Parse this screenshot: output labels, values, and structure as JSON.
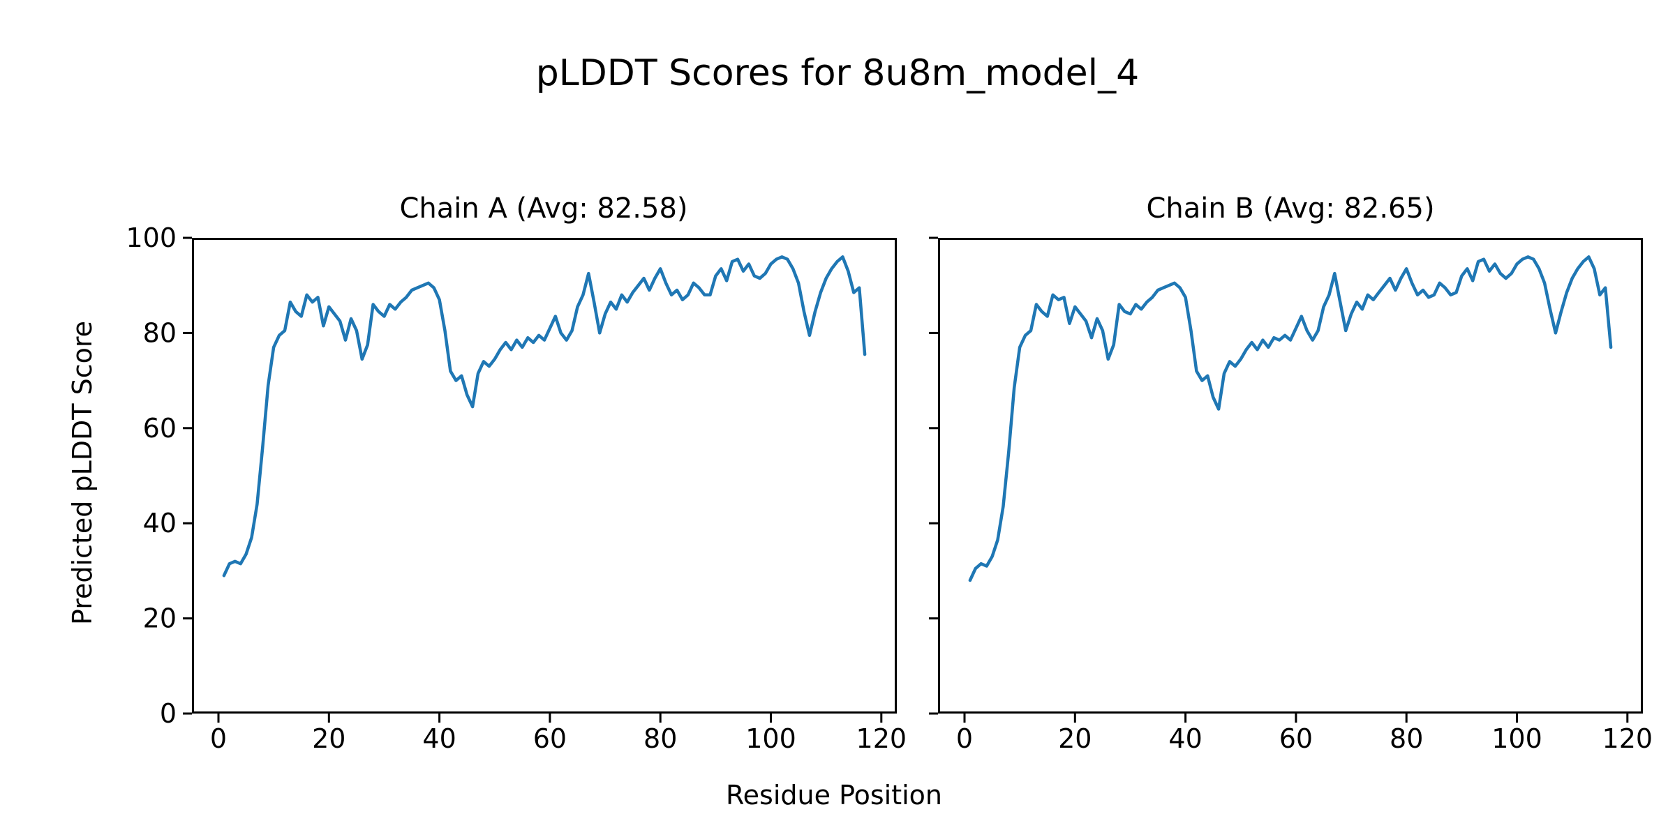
{
  "figure": {
    "title": "pLDDT Scores for 8u8m_model_4",
    "xlabel": "Residue Position",
    "ylabel": "Predicted pLDDT Score"
  },
  "chart_data": [
    {
      "type": "line",
      "title": "Chain A (Avg: 82.58)",
      "chain": "A",
      "avg": 82.58,
      "line_color": "#1f77b4",
      "xlim": [
        -4.8,
        122.8
      ],
      "ylim": [
        0,
        100
      ],
      "xticks": [
        0,
        20,
        40,
        60,
        80,
        100,
        120
      ],
      "yticks": [
        0,
        20,
        40,
        60,
        80,
        100
      ],
      "grid": false,
      "legend": "none",
      "x_start": 1,
      "values": [
        29,
        31.5,
        32,
        31.5,
        33.5,
        37,
        44,
        56,
        69,
        77,
        79.5,
        80.5,
        86.5,
        84.5,
        83.5,
        88,
        86.5,
        87.5,
        81.5,
        85.5,
        84,
        82.5,
        78.5,
        83,
        80.5,
        74.5,
        77.5,
        86,
        84.5,
        83.5,
        86,
        85,
        86.5,
        87.5,
        89,
        89.5,
        90,
        90.5,
        89.5,
        87,
        80.5,
        72,
        70,
        71,
        67,
        64.5,
        71.5,
        74,
        73,
        74.5,
        76.5,
        78,
        76.5,
        78.5,
        77,
        79,
        78,
        79.5,
        78.5,
        81,
        83.5,
        80,
        78.5,
        80.5,
        85.5,
        88,
        92.5,
        86.5,
        80,
        84,
        86.5,
        85,
        88,
        86.5,
        88.5,
        90,
        91.5,
        89,
        91.5,
        93.5,
        90.5,
        88,
        89,
        87,
        88,
        90.5,
        89.5,
        88,
        88,
        92,
        93.5,
        91,
        95,
        95.5,
        93,
        94.5,
        92,
        91.5,
        92.5,
        94.5,
        95.5,
        96,
        95.5,
        93.5,
        90.5,
        84.5,
        79.5,
        84.5,
        88.5,
        91.5,
        93.5,
        95,
        96,
        93,
        88.5,
        89.5,
        75.5
      ]
    },
    {
      "type": "line",
      "title": "Chain B (Avg: 82.65)",
      "chain": "B",
      "avg": 82.65,
      "line_color": "#1f77b4",
      "xlim": [
        -4.8,
        122.8
      ],
      "ylim": [
        0,
        100
      ],
      "xticks": [
        0,
        20,
        40,
        60,
        80,
        100,
        120
      ],
      "yticks": [
        0,
        20,
        40,
        60,
        80,
        100
      ],
      "grid": false,
      "legend": "none",
      "x_start": 1,
      "values": [
        28,
        30.5,
        31.5,
        31,
        33,
        36.5,
        43.5,
        55,
        68.5,
        77,
        79.5,
        80.5,
        86,
        84.5,
        83.5,
        88,
        87,
        87.5,
        82,
        85.5,
        84,
        82.5,
        79,
        83,
        80.5,
        74.5,
        77.5,
        86,
        84.5,
        84,
        86,
        85,
        86.5,
        87.5,
        89,
        89.5,
        90,
        90.5,
        89.5,
        87.5,
        80.5,
        72,
        70,
        71,
        66.5,
        64,
        71.5,
        74,
        73,
        74.5,
        76.5,
        78,
        76.5,
        78.5,
        77,
        79,
        78.5,
        79.5,
        78.5,
        81,
        83.5,
        80.5,
        78.5,
        80.5,
        85.5,
        88,
        92.5,
        86.5,
        80.5,
        84,
        86.5,
        85,
        88,
        87,
        88.5,
        90,
        91.5,
        89,
        91.5,
        93.5,
        90.5,
        88,
        89,
        87.5,
        88,
        90.5,
        89.5,
        88,
        88.5,
        92,
        93.5,
        91,
        95,
        95.5,
        93,
        94.5,
        92.5,
        91.5,
        92.5,
        94.5,
        95.5,
        96,
        95.5,
        93.5,
        90.5,
        85,
        80,
        84.5,
        88.5,
        91.5,
        93.5,
        95,
        96,
        93.5,
        88,
        89.5,
        77
      ]
    }
  ]
}
